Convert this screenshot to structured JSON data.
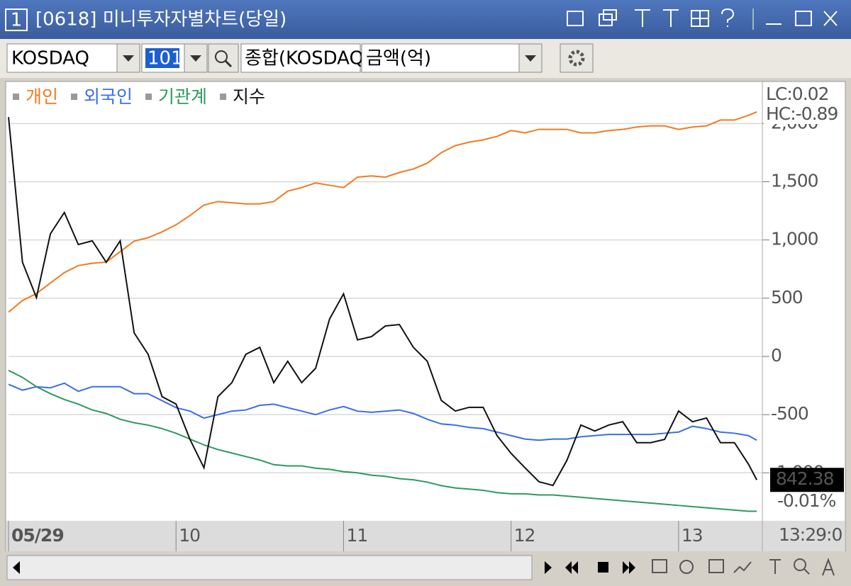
{
  "ui": {
    "window_number": "1",
    "window_title": "[0618] 미니투자자별차트(당일)",
    "market": "KOSDAQ",
    "code": "101",
    "index_name": "종합(KOSDAQ",
    "unit": "금액(억)",
    "time": "13:29:0"
  },
  "chart_data": {
    "type": "line",
    "x": [
      0,
      5,
      10,
      15,
      20,
      25,
      30,
      35,
      40,
      45,
      50,
      55,
      60,
      65,
      70,
      75,
      80,
      85,
      90,
      95,
      100,
      105,
      110,
      115,
      120,
      125,
      130,
      135,
      140,
      145,
      150,
      155,
      160,
      165,
      170,
      175,
      180,
      185,
      190,
      195,
      200,
      205,
      210,
      215,
      220,
      225,
      230,
      235,
      240,
      245,
      250,
      255,
      260,
      265,
      268
    ],
    "xlim": [
      0,
      270
    ],
    "xticks": [
      {
        "value": 0,
        "label": "05/29"
      },
      {
        "value": 60,
        "label": "10"
      },
      {
        "value": 120,
        "label": "11"
      },
      {
        "value": 180,
        "label": "12"
      },
      {
        "value": 240,
        "label": "13"
      }
    ],
    "ylim": [
      -1412,
      2343
    ],
    "yticks": [
      {
        "value": 2000,
        "label": "2,000"
      },
      {
        "value": 1500,
        "label": "1,500"
      },
      {
        "value": 1000,
        "label": "1,000"
      },
      500,
      0,
      -500,
      {
        "value": -1000,
        "label": "-1,000"
      }
    ],
    "y2lim": [
      841.5,
      850.9
    ],
    "grid": true,
    "series": [
      {
        "name": "개인",
        "color": "#f47a20",
        "values": [
          380,
          480,
          540,
          630,
          720,
          780,
          800,
          810,
          900,
          990,
          1020,
          1070,
          1130,
          1210,
          1300,
          1330,
          1320,
          1310,
          1310,
          1330,
          1420,
          1450,
          1490,
          1470,
          1450,
          1540,
          1550,
          1540,
          1580,
          1610,
          1660,
          1750,
          1810,
          1840,
          1860,
          1890,
          1940,
          1920,
          1950,
          1950,
          1950,
          1920,
          1920,
          1940,
          1950,
          1970,
          1980,
          1980,
          1950,
          1970,
          1980,
          2030,
          2030,
          2070,
          2100
        ]
      },
      {
        "name": "외국인",
        "color": "#3a6ee8",
        "values": [
          -240,
          -290,
          -260,
          -270,
          -230,
          -300,
          -260,
          -260,
          -260,
          -320,
          -320,
          -380,
          -440,
          -470,
          -530,
          -500,
          -470,
          -460,
          -420,
          -410,
          -440,
          -470,
          -500,
          -460,
          -430,
          -470,
          -480,
          -470,
          -460,
          -490,
          -540,
          -580,
          -590,
          -610,
          -620,
          -650,
          -680,
          -710,
          -720,
          -710,
          -710,
          -690,
          -680,
          -670,
          -670,
          -670,
          -670,
          -660,
          -650,
          -600,
          -620,
          -650,
          -660,
          -680,
          -720
        ]
      },
      {
        "name": "기관계",
        "color": "#2e9a5e",
        "values": [
          -120,
          -180,
          -260,
          -320,
          -370,
          -410,
          -460,
          -490,
          -540,
          -570,
          -590,
          -620,
          -660,
          -710,
          -760,
          -800,
          -830,
          -860,
          -890,
          -930,
          -940,
          -940,
          -960,
          -970,
          -990,
          -1000,
          -1020,
          -1030,
          -1050,
          -1060,
          -1080,
          -1110,
          -1130,
          -1140,
          -1150,
          -1170,
          -1180,
          -1180,
          -1190,
          -1190,
          -1200,
          -1210,
          -1220,
          -1230,
          -1240,
          -1250,
          -1260,
          -1270,
          -1280,
          -1290,
          -1300,
          -1310,
          -1320,
          -1330,
          -1330
        ]
      },
      {
        "name": "지수",
        "color": "#111111",
        "axis": "y2",
        "values": [
          850.18,
          847.06,
          846.3,
          847.67,
          848.13,
          847.44,
          847.52,
          847.06,
          847.52,
          845.54,
          845.08,
          844.17,
          844.01,
          843.25,
          842.64,
          844.17,
          844.47,
          845.08,
          845.23,
          844.47,
          844.93,
          844.47,
          844.78,
          845.84,
          846.38,
          845.39,
          845.46,
          845.69,
          845.72,
          845.23,
          844.93,
          844.09,
          843.86,
          843.94,
          843.94,
          843.33,
          842.95,
          842.64,
          842.34,
          842.26,
          842.8,
          843.56,
          843.43,
          843.56,
          843.63,
          843.18,
          843.18,
          843.25,
          843.86,
          843.63,
          843.71,
          843.18,
          843.18,
          842.72,
          842.38
        ]
      }
    ],
    "annotations": [
      "LC:0.02",
      "HC:-0.89",
      "-0.01%"
    ]
  }
}
